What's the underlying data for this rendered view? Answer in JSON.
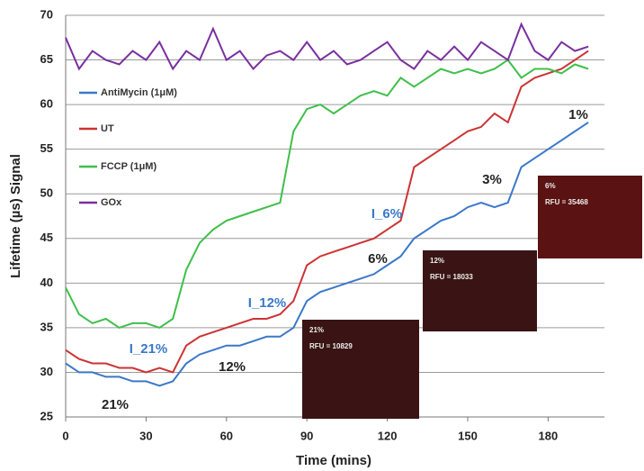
{
  "chart_data": {
    "type": "line",
    "x_label": "Time (mins)",
    "y_label": "Lifetime (µs) Signal",
    "x": [
      0,
      5,
      10,
      15,
      20,
      25,
      30,
      35,
      40,
      45,
      50,
      55,
      60,
      65,
      70,
      75,
      80,
      85,
      90,
      95,
      100,
      105,
      110,
      115,
      120,
      125,
      130,
      135,
      140,
      145,
      150,
      155,
      160,
      165,
      170,
      175,
      180,
      185,
      190,
      195
    ],
    "xlim": [
      0,
      200
    ],
    "xticks": [
      0,
      30,
      60,
      90,
      120,
      150,
      180
    ],
    "ylim": [
      25,
      70
    ],
    "yticks": [
      25,
      30,
      35,
      40,
      45,
      50,
      55,
      60,
      65,
      70
    ],
    "grid": true,
    "legend": "left",
    "series": [
      {
        "name": "AntiMycin (1μM)",
        "color": "#3a78c8",
        "values": [
          31,
          30,
          30,
          29.5,
          29.5,
          29,
          29,
          28.5,
          29,
          31,
          32,
          32.5,
          33,
          33,
          33.5,
          34,
          34,
          35,
          38,
          39,
          39.5,
          40,
          40.5,
          41,
          42,
          43,
          45,
          46,
          47,
          47.5,
          48.5,
          49,
          48.5,
          49,
          53,
          54,
          55,
          56,
          57,
          58
        ]
      },
      {
        "name": "UT",
        "color": "#cc3333",
        "values": [
          32.5,
          31.5,
          31,
          31,
          30.5,
          30.5,
          30,
          30.5,
          30,
          33,
          34,
          34.5,
          35,
          35.5,
          36,
          36,
          36.5,
          38,
          42,
          43,
          43.5,
          44,
          44.5,
          45,
          46,
          47,
          53,
          54,
          55,
          56,
          57,
          57.5,
          59,
          58,
          62,
          63,
          63.5,
          64,
          65,
          66
        ]
      },
      {
        "name": "FCCP (1μM)",
        "color": "#3fbf4a",
        "values": [
          39.5,
          36.5,
          35.5,
          36,
          35,
          35.5,
          35.5,
          35,
          36,
          41.5,
          44.5,
          46,
          47,
          47.5,
          48,
          48.5,
          49,
          57,
          59.5,
          60,
          59,
          60,
          61,
          61.5,
          61,
          63,
          62,
          63,
          64,
          63.5,
          64,
          63.5,
          64,
          65,
          63,
          64,
          64,
          63.5,
          64.5,
          64
        ]
      },
      {
        "name": "GOx",
        "color": "#7a2fa0",
        "values": [
          67.5,
          64,
          66,
          65,
          64.5,
          66,
          65,
          67,
          64,
          66,
          65,
          68.5,
          65,
          66,
          64,
          65.5,
          66,
          65,
          67,
          65,
          66,
          64.5,
          65,
          66,
          67,
          65,
          64,
          66,
          65,
          66.5,
          65,
          67,
          66,
          65,
          69,
          66,
          65,
          67,
          66,
          66.5
        ]
      }
    ],
    "annotations": [
      {
        "text": "21%",
        "color": "#222"
      },
      {
        "text": "I_21%",
        "color": "#3a78c8"
      },
      {
        "text": "12%",
        "color": "#222"
      },
      {
        "text": "I_12%",
        "color": "#3a78c8"
      },
      {
        "text": "6%",
        "color": "#222"
      },
      {
        "text": "I_6%",
        "color": "#3a78c8"
      },
      {
        "text": "3%",
        "color": "#222"
      },
      {
        "text": "1%",
        "color": "#222"
      }
    ],
    "insets": [
      {
        "label": "21%",
        "rfu": "RFU = 10829"
      },
      {
        "label": "12%",
        "rfu": "RFU = 18033"
      },
      {
        "label": "6%",
        "rfu": "RFU = 35468"
      }
    ]
  }
}
